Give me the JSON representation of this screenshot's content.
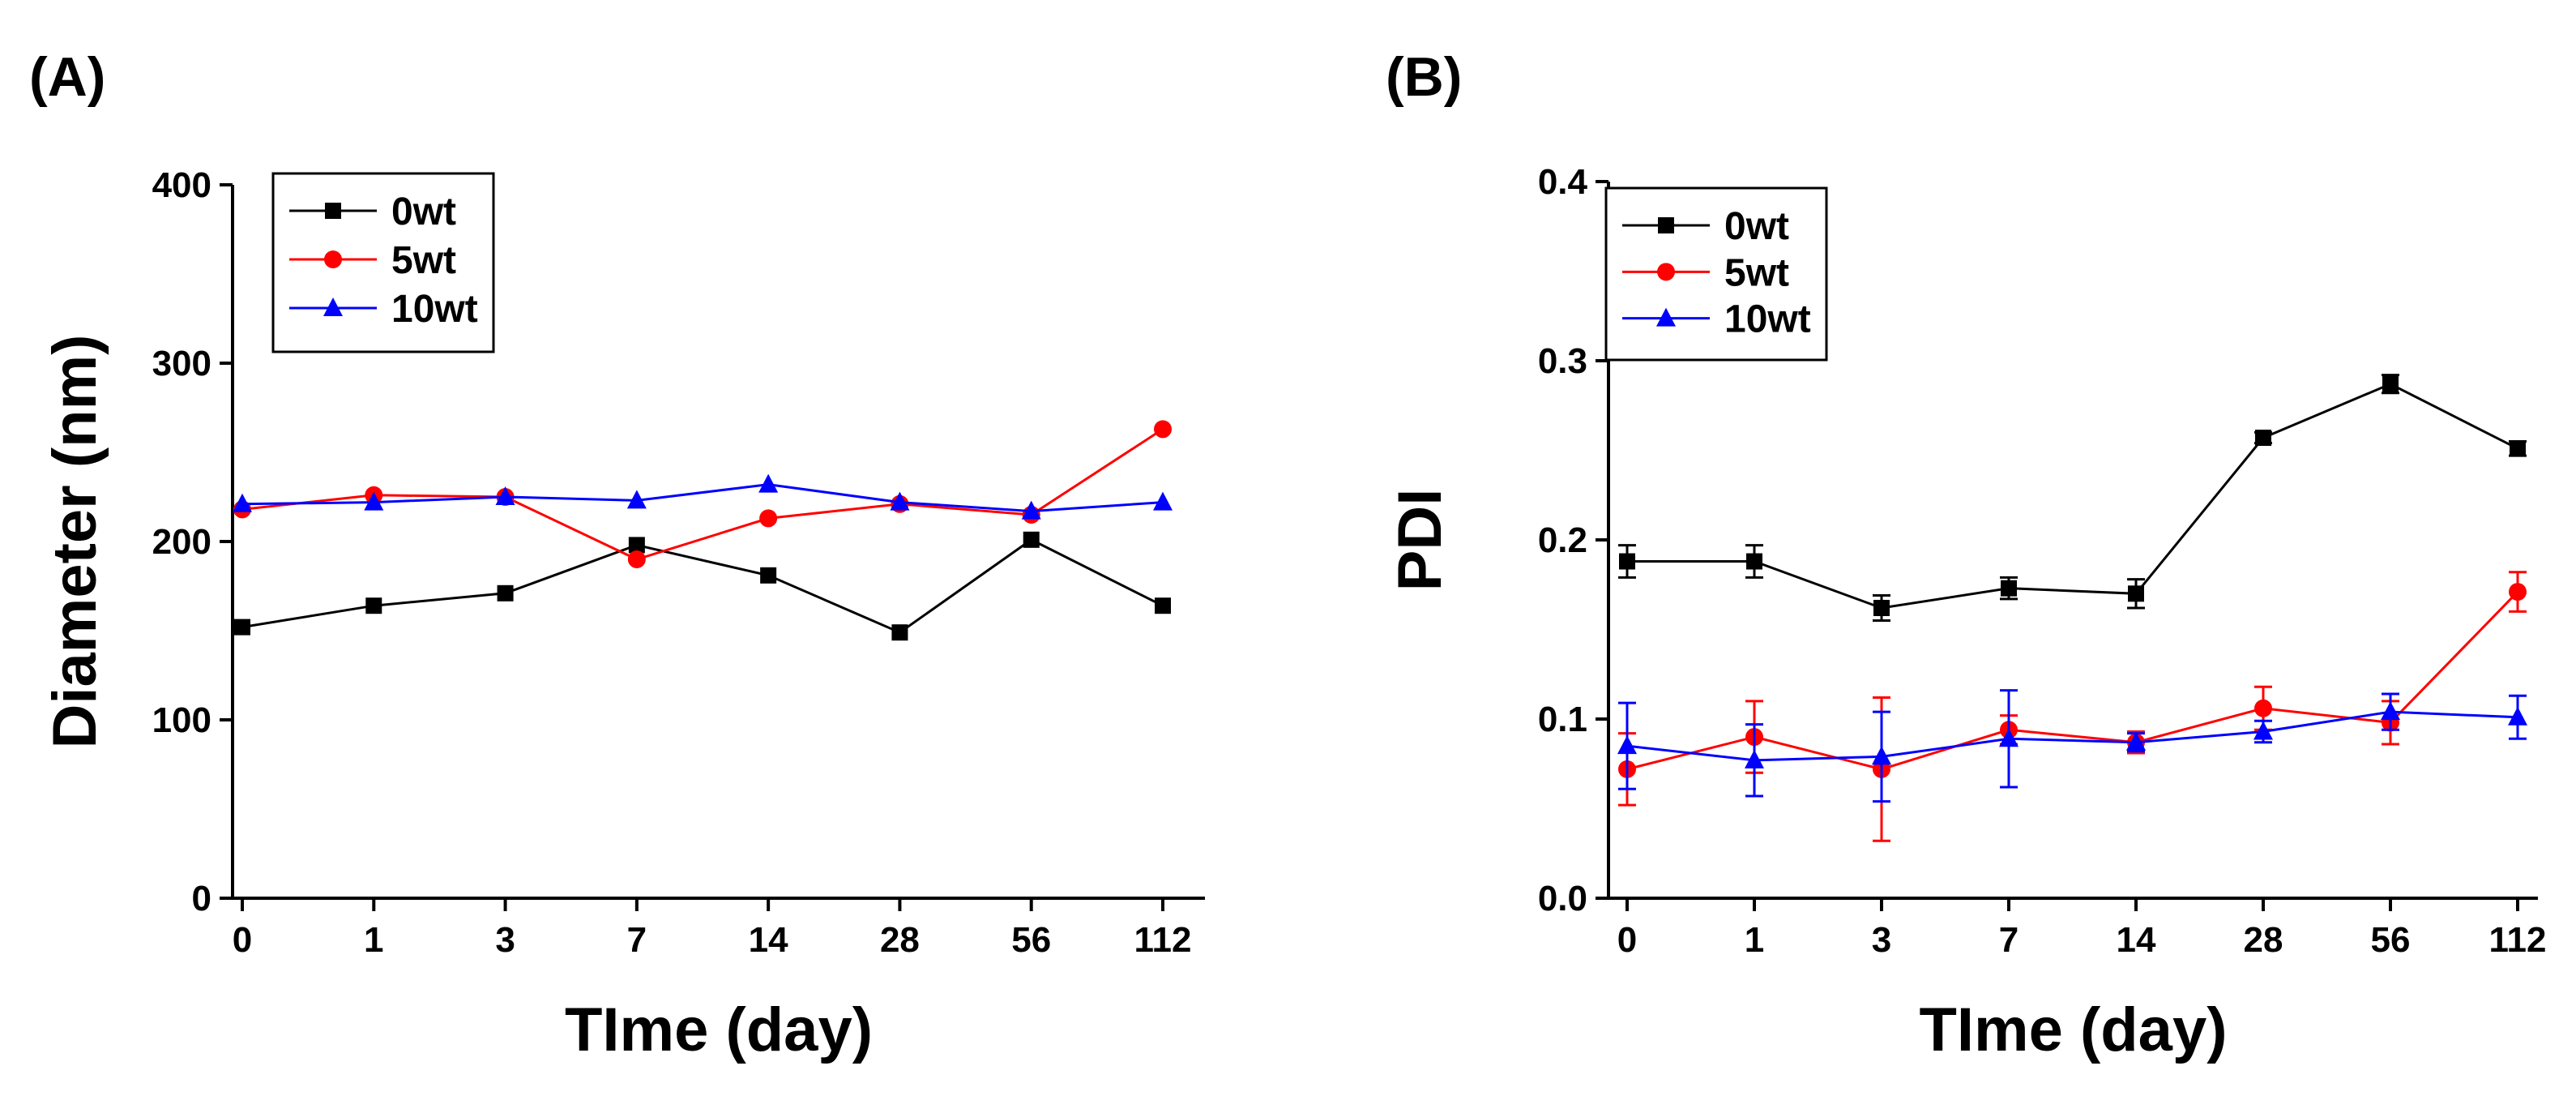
{
  "chart_data": [
    {
      "panel_label": "(A)",
      "type": "line",
      "categories": [
        "0",
        "1",
        "3",
        "7",
        "14",
        "28",
        "56",
        "112"
      ],
      "xlabel": "TIme (day)",
      "ylabel": "Diameter (nm)",
      "ylim": [
        0,
        400
      ],
      "yticks": [
        "0",
        "100",
        "200",
        "300",
        "400"
      ],
      "legend_position": "top-left",
      "grid": false,
      "series": [
        {
          "name": "0wt",
          "marker": "square",
          "color": "#000000",
          "values": [
            152,
            164,
            171,
            198,
            181,
            149,
            201,
            164
          ]
        },
        {
          "name": "5wt",
          "marker": "circle",
          "color": "#ff0000",
          "values": [
            218,
            226,
            225,
            190,
            213,
            221,
            215,
            263
          ]
        },
        {
          "name": "10wt",
          "marker": "triangle",
          "color": "#0000ff",
          "values": [
            221,
            222,
            225,
            223,
            232,
            222,
            217,
            222
          ]
        }
      ]
    },
    {
      "panel_label": "(B)",
      "type": "line",
      "categories": [
        "0",
        "1",
        "3",
        "7",
        "14",
        "28",
        "56",
        "112"
      ],
      "xlabel": "TIme (day)",
      "ylabel": "PDI",
      "ylim": [
        0,
        0.4
      ],
      "yticks": [
        "0.0",
        "0.1",
        "0.2",
        "0.3",
        "0.4"
      ],
      "legend_position": "top-left",
      "grid": false,
      "series": [
        {
          "name": "0wt",
          "marker": "square",
          "color": "#000000",
          "values": [
            0.188,
            0.188,
            0.162,
            0.173,
            0.17,
            0.257,
            0.287,
            0.251
          ],
          "errors": [
            0.009,
            0.009,
            0.007,
            0.006,
            0.008,
            0.003,
            0.005,
            0.004
          ]
        },
        {
          "name": "5wt",
          "marker": "circle",
          "color": "#ff0000",
          "values": [
            0.072,
            0.09,
            0.072,
            0.094,
            0.087,
            0.106,
            0.098,
            0.171
          ],
          "errors": [
            0.02,
            0.02,
            0.04,
            0.008,
            0.006,
            0.012,
            0.012,
            0.011
          ]
        },
        {
          "name": "10wt",
          "marker": "triangle",
          "color": "#0000ff",
          "values": [
            0.085,
            0.077,
            0.079,
            0.089,
            0.087,
            0.093,
            0.104,
            0.101
          ],
          "errors": [
            0.024,
            0.02,
            0.025,
            0.027,
            0.005,
            0.006,
            0.01,
            0.012
          ]
        }
      ]
    }
  ]
}
